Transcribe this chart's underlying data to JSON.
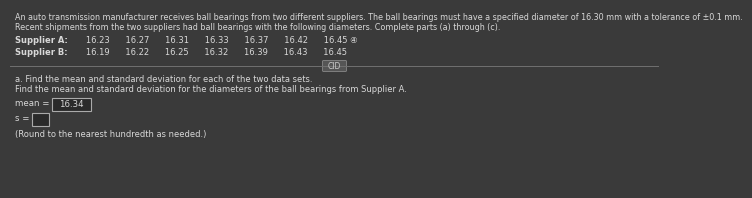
{
  "bg_color": "#3a3a3a",
  "text_color": "#d8d8d8",
  "header_line1": "An auto transmission manufacturer receives ball bearings from two different suppliers. The ball bearings must have a specified diameter of 16.30 mm with a tolerance of ±0.1 mm.",
  "header_line2": "Recent shipments from the two suppliers had ball bearings with the following diameters. Complete parts (a) through (c).",
  "supplier_a_label": "Supplier A:",
  "supplier_a_values": "   16.23      16.27      16.31      16.33      16.37      16.42      16.45 ④",
  "supplier_b_label": "Supplier B:",
  "supplier_b_values": "   16.19      16.22      16.25      16.32      16.39      16.43      16.45",
  "sep_color": "#707070",
  "cid_text": "CID",
  "cid_bg": "#555555",
  "cid_border": "#888888",
  "part_a_text": "a. Find the mean and standard deviation for each of the two data sets.",
  "find_text": "Find the mean and standard deviation for the diameters of the ball bearings from Supplier A.",
  "mean_label": "mean =",
  "mean_value": "16.34",
  "mean_box_color": "#2a2a2a",
  "mean_box_border": "#aaaaaa",
  "s_label": "s =",
  "s_box_color": "#2a2a2a",
  "s_box_border": "#aaaaaa",
  "round_note": "(Round to the nearest hundredth as needed.)",
  "fs_header": 5.8,
  "fs_body": 6.0,
  "fs_supplier": 6.0,
  "fs_mean": 6.2
}
